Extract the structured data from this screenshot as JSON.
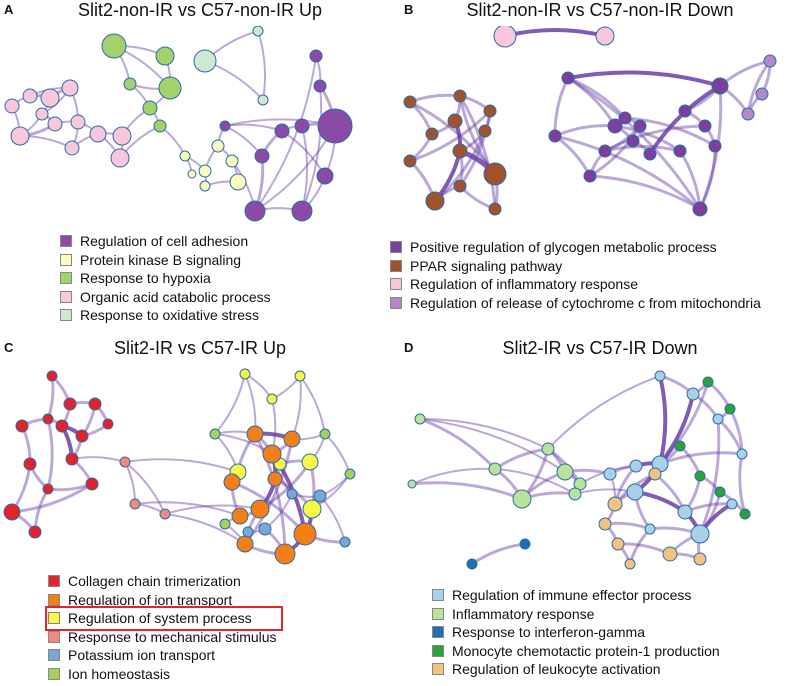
{
  "panels": {
    "a": {
      "label": "A",
      "title": "Slit2-non-IR vs C57-non-IR Up",
      "legend": [
        {
          "label": "Regulation of cell adhesion",
          "color": "#8b4aa6"
        },
        {
          "label": "Protein kinase B signaling",
          "color": "#fbfbbe"
        },
        {
          "label": "Response to hypoxia",
          "color": "#a3d26d"
        },
        {
          "label": "Organic acid catabolic process",
          "color": "#f8c7dc"
        },
        {
          "label": "Response to oxidative stress",
          "color": "#cfe8cf"
        }
      ]
    },
    "b": {
      "label": "B",
      "title": "Slit2-non-IR vs C57-non-IR Down",
      "legend": [
        {
          "label": "Positive regulation of glycogen metabolic process",
          "color": "#7d3f9d"
        },
        {
          "label": "PPAR signaling pathway",
          "color": "#a0522d"
        },
        {
          "label": "Regulation of inflammatory response",
          "color": "#f8c7dc"
        },
        {
          "label": "Regulation of release of cytochrome c from mitochondria",
          "color": "#b587c6"
        }
      ]
    },
    "c": {
      "label": "C",
      "title": "Slit2-IR vs C57-IR Up",
      "legend": [
        {
          "label": "Collagen chain trimerization",
          "color": "#e3232b"
        },
        {
          "label": "Regulation of ion transport",
          "color": "#f57f17"
        },
        {
          "label": "Regulation of system process",
          "color": "#f7f74a"
        },
        {
          "label": "Response to mechanical stimulus",
          "color": "#ef8a7f"
        },
        {
          "label": "Potassium ion transport",
          "color": "#7aa7d1"
        },
        {
          "label": "Ion homeostasis",
          "color": "#a6cf5b"
        }
      ]
    },
    "d": {
      "label": "D",
      "title": "Slit2-IR vs C57-IR Down",
      "legend": [
        {
          "label": "Regulation of immune effector process",
          "color": "#a9d0e6"
        },
        {
          "label": "Inflammatory response",
          "color": "#b9e29b"
        },
        {
          "label": "Response to interferon-gamma",
          "color": "#1f6fb4"
        },
        {
          "label": "Monocyte chemotactic protein-1 production",
          "color": "#2ca33a"
        },
        {
          "label": "Regulation of leukocyte activation",
          "color": "#f4c27f"
        }
      ]
    }
  },
  "colors": {
    "edge": "#6a3fa8",
    "node_stroke": "#2b6ca8",
    "highlight_box": "#e0262b"
  }
}
